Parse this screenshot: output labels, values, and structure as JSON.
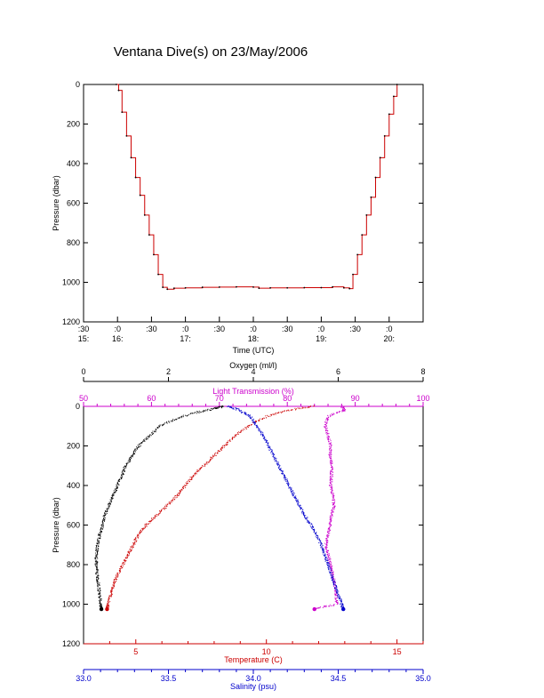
{
  "page_title": "Ventana Dive(s) on 23/May/2006",
  "chart_data": [
    {
      "type": "line",
      "title": "",
      "xlabel": "Time (UTC)",
      "ylabel": "Pressure (dbar)",
      "y_reversed": true,
      "ylim": [
        0,
        1200
      ],
      "y_ticks": [
        "0",
        "200",
        "400",
        "600",
        "800",
        "1000",
        "1200"
      ],
      "xlim": [
        "15:30",
        "20:30"
      ],
      "x_ticks": [
        {
          "top": ":30",
          "bottom": "15:"
        },
        {
          "top": ":0",
          "bottom": "16:"
        },
        {
          "top": ":30",
          "bottom": ""
        },
        {
          "top": ":0",
          "bottom": "17:"
        },
        {
          "top": ":30",
          "bottom": ""
        },
        {
          "top": ":0",
          "bottom": "18:"
        },
        {
          "top": ":30",
          "bottom": ""
        },
        {
          "top": ":0",
          "bottom": "19:"
        },
        {
          "top": ":30",
          "bottom": ""
        },
        {
          "top": ":0",
          "bottom": "20:"
        }
      ],
      "series": [
        {
          "color": "#cc0000",
          "x": [
            "15:59",
            "16:01",
            "16:04",
            "16:08",
            "16:12",
            "16:16",
            "16:20",
            "16:24",
            "16:28",
            "16:32",
            "16:36",
            "16:40",
            "16:44",
            "16:50",
            "17:00",
            "17:15",
            "17:30",
            "17:45",
            "18:00",
            "18:05",
            "18:15",
            "18:30",
            "18:45",
            "19:00",
            "19:10",
            "19:20",
            "19:25",
            "19:28",
            "19:32",
            "19:36",
            "19:40",
            "19:44",
            "19:48",
            "19:52",
            "19:56",
            "20:00",
            "20:04",
            "20:07"
          ],
          "y": [
            0,
            30,
            140,
            260,
            370,
            470,
            560,
            660,
            760,
            860,
            960,
            1025,
            1035,
            1030,
            1028,
            1025,
            1024,
            1023,
            1024,
            1030,
            1028,
            1028,
            1027,
            1027,
            1023,
            1028,
            1032,
            960,
            860,
            760,
            660,
            570,
            470,
            370,
            260,
            150,
            60,
            0
          ]
        }
      ]
    },
    {
      "type": "scatter",
      "title": "",
      "ylabel": "Pressure (dbar)",
      "y_reversed": true,
      "ylim": [
        0,
        1200
      ],
      "y_ticks": [
        "0",
        "200",
        "400",
        "600",
        "800",
        "1000",
        "1200"
      ],
      "axes": {
        "oxygen": {
          "label": "Oxygen (ml/l)",
          "color": "#000000",
          "position": "top-outer",
          "range": [
            0,
            8
          ],
          "ticks": [
            "0",
            "2",
            "4",
            "6",
            "8"
          ]
        },
        "light_transmission": {
          "label": "Light Transmission (%)",
          "color": "#cc00cc",
          "position": "top-inner",
          "range": [
            50,
            100
          ],
          "ticks": [
            "50",
            "60",
            "70",
            "80",
            "90",
            "100"
          ]
        },
        "temperature": {
          "label": "Temperature (C)",
          "color": "#cc0000",
          "position": "bottom-inner",
          "range": [
            3,
            16
          ],
          "ticks": [
            "5",
            "10",
            "15"
          ]
        },
        "salinity": {
          "label": "Salinity (psu)",
          "color": "#0000cc",
          "position": "bottom-outer",
          "range": [
            33.0,
            35.0
          ],
          "ticks": [
            "33.0",
            "33.5",
            "34.0",
            "34.5",
            "35.0"
          ]
        }
      },
      "series": [
        {
          "axis": "oxygen",
          "color": "#000000",
          "p": [
            0,
            10,
            30,
            60,
            100,
            150,
            200,
            250,
            300,
            350,
            400,
            450,
            500,
            550,
            600,
            650,
            700,
            750,
            800,
            850,
            900,
            950,
            1000,
            1025
          ],
          "v": [
            3.3,
            3.1,
            2.7,
            2.2,
            1.8,
            1.55,
            1.3,
            1.15,
            1.0,
            0.9,
            0.8,
            0.7,
            0.6,
            0.5,
            0.45,
            0.38,
            0.33,
            0.3,
            0.3,
            0.32,
            0.35,
            0.38,
            0.4,
            0.42
          ]
        },
        {
          "axis": "light_transmission",
          "color": "#cc00cc",
          "p": [
            0,
            20,
            50,
            100,
            150,
            200,
            250,
            300,
            350,
            400,
            450,
            500,
            550,
            600,
            650,
            700,
            750,
            800,
            850,
            900,
            950,
            1000,
            1025
          ],
          "v": [
            88.0,
            88.5,
            86.0,
            85.6,
            86.0,
            86.4,
            86.3,
            86.6,
            86.5,
            86.4,
            86.7,
            86.9,
            86.5,
            86.3,
            86.0,
            85.7,
            86.0,
            86.4,
            86.7,
            87.0,
            87.2,
            87.3,
            84.0
          ]
        },
        {
          "axis": "temperature",
          "color": "#cc0000",
          "p": [
            0,
            20,
            50,
            100,
            150,
            200,
            250,
            300,
            350,
            400,
            450,
            500,
            550,
            600,
            650,
            700,
            750,
            800,
            850,
            900,
            950,
            1000,
            1025
          ],
          "v": [
            11.8,
            10.8,
            10.0,
            9.3,
            8.8,
            8.4,
            8.0,
            7.6,
            7.2,
            6.9,
            6.6,
            6.2,
            5.8,
            5.4,
            5.1,
            4.9,
            4.7,
            4.5,
            4.3,
            4.15,
            4.05,
            3.95,
            3.9
          ]
        },
        {
          "axis": "salinity",
          "color": "#0000cc",
          "p": [
            0,
            20,
            50,
            100,
            150,
            200,
            250,
            300,
            350,
            400,
            450,
            500,
            550,
            600,
            650,
            700,
            750,
            800,
            850,
            900,
            950,
            1000,
            1025
          ],
          "v": [
            33.85,
            33.92,
            33.98,
            34.02,
            34.06,
            34.09,
            34.12,
            34.15,
            34.18,
            34.21,
            34.24,
            34.27,
            34.3,
            34.34,
            34.37,
            34.4,
            34.42,
            34.44,
            34.46,
            34.48,
            34.5,
            34.52,
            34.53
          ]
        }
      ],
      "bottom_markers": [
        {
          "axis": "oxygen",
          "color": "#000000",
          "v": 0.42,
          "p": 1025
        },
        {
          "axis": "temperature",
          "color": "#cc0000",
          "v": 3.9,
          "p": 1025
        },
        {
          "axis": "light_transmission",
          "color": "#cc00cc",
          "v": 84.0,
          "p": 1025
        },
        {
          "axis": "salinity",
          "color": "#0000cc",
          "v": 34.53,
          "p": 1025
        }
      ]
    }
  ]
}
